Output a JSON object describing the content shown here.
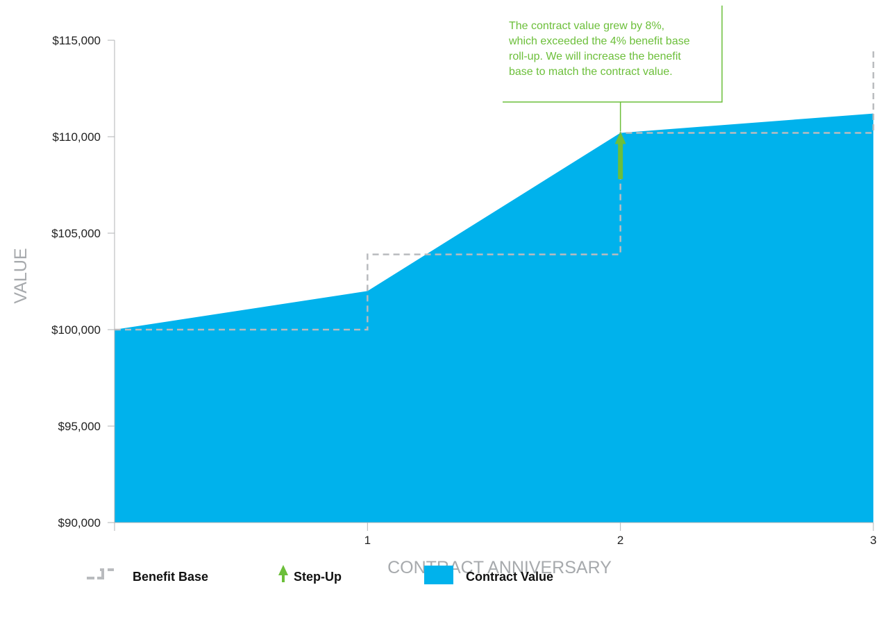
{
  "chart_data": {
    "type": "area",
    "xlabel": "CONTRACT ANNIVERSARY",
    "ylabel": "VALUE",
    "ylim": [
      90000,
      115000
    ],
    "xlim": [
      0,
      3
    ],
    "x_ticks": [
      "1",
      "2",
      "3"
    ],
    "y_ticks": [
      "$90,000",
      "$95,000",
      "$100,000",
      "$105,000",
      "$110,000",
      "$115,000"
    ],
    "series": [
      {
        "name": "Contract Value",
        "style": "area",
        "color": "#00b2ec",
        "x": [
          0,
          1,
          2,
          3
        ],
        "y": [
          100000,
          102000,
          110200,
          111200
        ]
      },
      {
        "name": "Benefit Base",
        "style": "dashed-step",
        "color": "#b9bbbe",
        "x": [
          0,
          1,
          2,
          3
        ],
        "y": [
          100000,
          103900,
          110200,
          114500
        ]
      }
    ],
    "step_up": {
      "name": "Step-Up",
      "color": "#6cbf3a",
      "x": 2,
      "from": 107800,
      "to": 110200
    },
    "annotation": {
      "lines": [
        "The contract value grew by 8%,",
        "which exceeded the 4% benefit base",
        "roll-up. We will increase the benefit",
        "base to match the contract value."
      ],
      "color": "#6cbf3a",
      "x": 2
    },
    "legend": {
      "placement": "bottom",
      "items": [
        {
          "label": "Benefit Base",
          "icon": "dashed-step-icon"
        },
        {
          "label": "Step-Up",
          "icon": "up-arrow-icon"
        },
        {
          "label": "Contract Value",
          "icon": "blue-square-icon"
        }
      ]
    },
    "grid": false
  }
}
